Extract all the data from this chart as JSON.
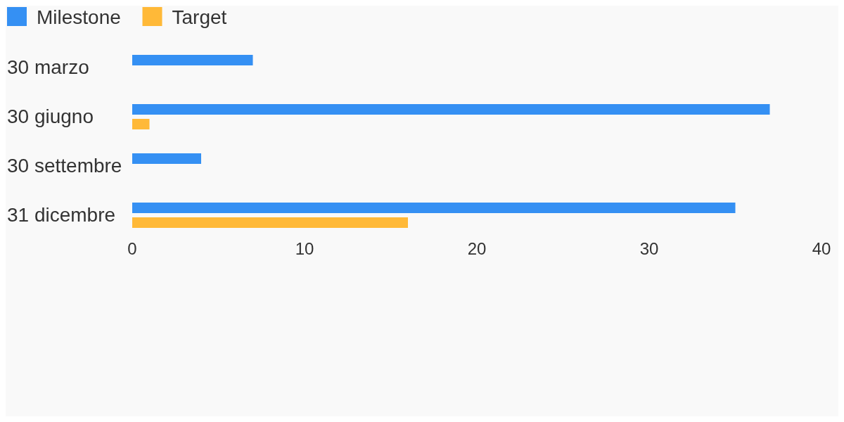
{
  "chart_data": {
    "type": "bar",
    "orientation": "horizontal",
    "categories": [
      "30 marzo",
      "30 giugno",
      "30 settembre",
      "31 dicembre"
    ],
    "series": [
      {
        "name": "Milestone",
        "color": "#3590f3",
        "values": [
          7,
          37,
          4,
          35
        ]
      },
      {
        "name": "Target",
        "color": "#ffb938",
        "values": [
          null,
          1,
          null,
          16
        ]
      }
    ],
    "xlim": [
      0,
      40
    ],
    "xticks": [
      0,
      10,
      20,
      30,
      40
    ],
    "grid": false,
    "legend": "top left"
  }
}
